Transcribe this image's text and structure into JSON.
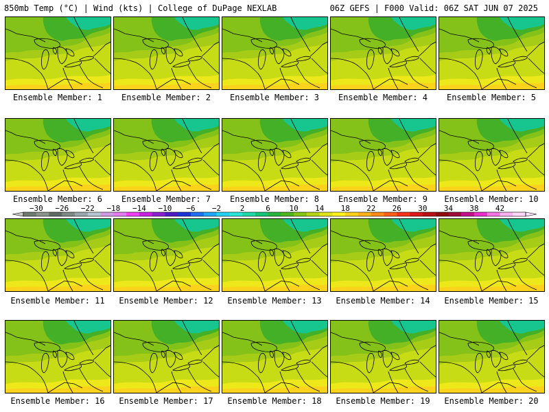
{
  "header": {
    "left": "850mb Temp (°C) | Wind (kts) | College of DuPage NEXLAB",
    "right": "06Z GEFS | F000 Valid: 06Z SAT JUN 07 2025"
  },
  "panels": [
    {
      "label": "Ensemble Member: 1"
    },
    {
      "label": "Ensemble Member: 2"
    },
    {
      "label": "Ensemble Member: 3"
    },
    {
      "label": "Ensemble Member: 4"
    },
    {
      "label": "Ensemble Member: 5"
    },
    {
      "label": "Ensemble Member: 6"
    },
    {
      "label": "Ensemble Member: 7"
    },
    {
      "label": "Ensemble Member: 8"
    },
    {
      "label": "Ensemble Member: 9"
    },
    {
      "label": "Ensemble Member: 10"
    },
    {
      "label": "Ensemble Member: 11"
    },
    {
      "label": "Ensemble Member: 12"
    },
    {
      "label": "Ensemble Member: 13"
    },
    {
      "label": "Ensemble Member: 14"
    },
    {
      "label": "Ensemble Member: 15"
    },
    {
      "label": "Ensemble Member: 16"
    },
    {
      "label": "Ensemble Member: 17"
    },
    {
      "label": "Ensemble Member: 18"
    },
    {
      "label": "Ensemble Member: 19"
    },
    {
      "label": "Ensemble Member: 20"
    }
  ],
  "colorbar": {
    "tick_labels": [
      "−30",
      "−26",
      "−22",
      "−18",
      "−14",
      "−10",
      "−6",
      "−2",
      "2",
      "6",
      "10",
      "14",
      "18",
      "22",
      "26",
      "30",
      "34",
      "38",
      "42"
    ],
    "colors": [
      "#6e7a70",
      "#8a938c",
      "#5f6b64",
      "#7d8a86",
      "#9aa8ae",
      "#b6c5d2",
      "#cf9be6",
      "#e27cf0",
      "#f13ff3",
      "#c720e0",
      "#8a1fcf",
      "#4a1cc4",
      "#1b34d6",
      "#1f6ff0",
      "#1ea7f6",
      "#24d3f4",
      "#27e6d8",
      "#1fd9a5",
      "#14c476",
      "#26b43a",
      "#4fb51c",
      "#84c414",
      "#b4d316",
      "#e0e21a",
      "#fff21e",
      "#ffd11a",
      "#ffb21a",
      "#ff8a18",
      "#ff5e18",
      "#f6311a",
      "#dc181a",
      "#b80f12",
      "#8e0c0c",
      "#a00c3c",
      "#c40f8c",
      "#e82fca",
      "#f772e2",
      "#fcb2f0",
      "#ffd6f8"
    ]
  }
}
